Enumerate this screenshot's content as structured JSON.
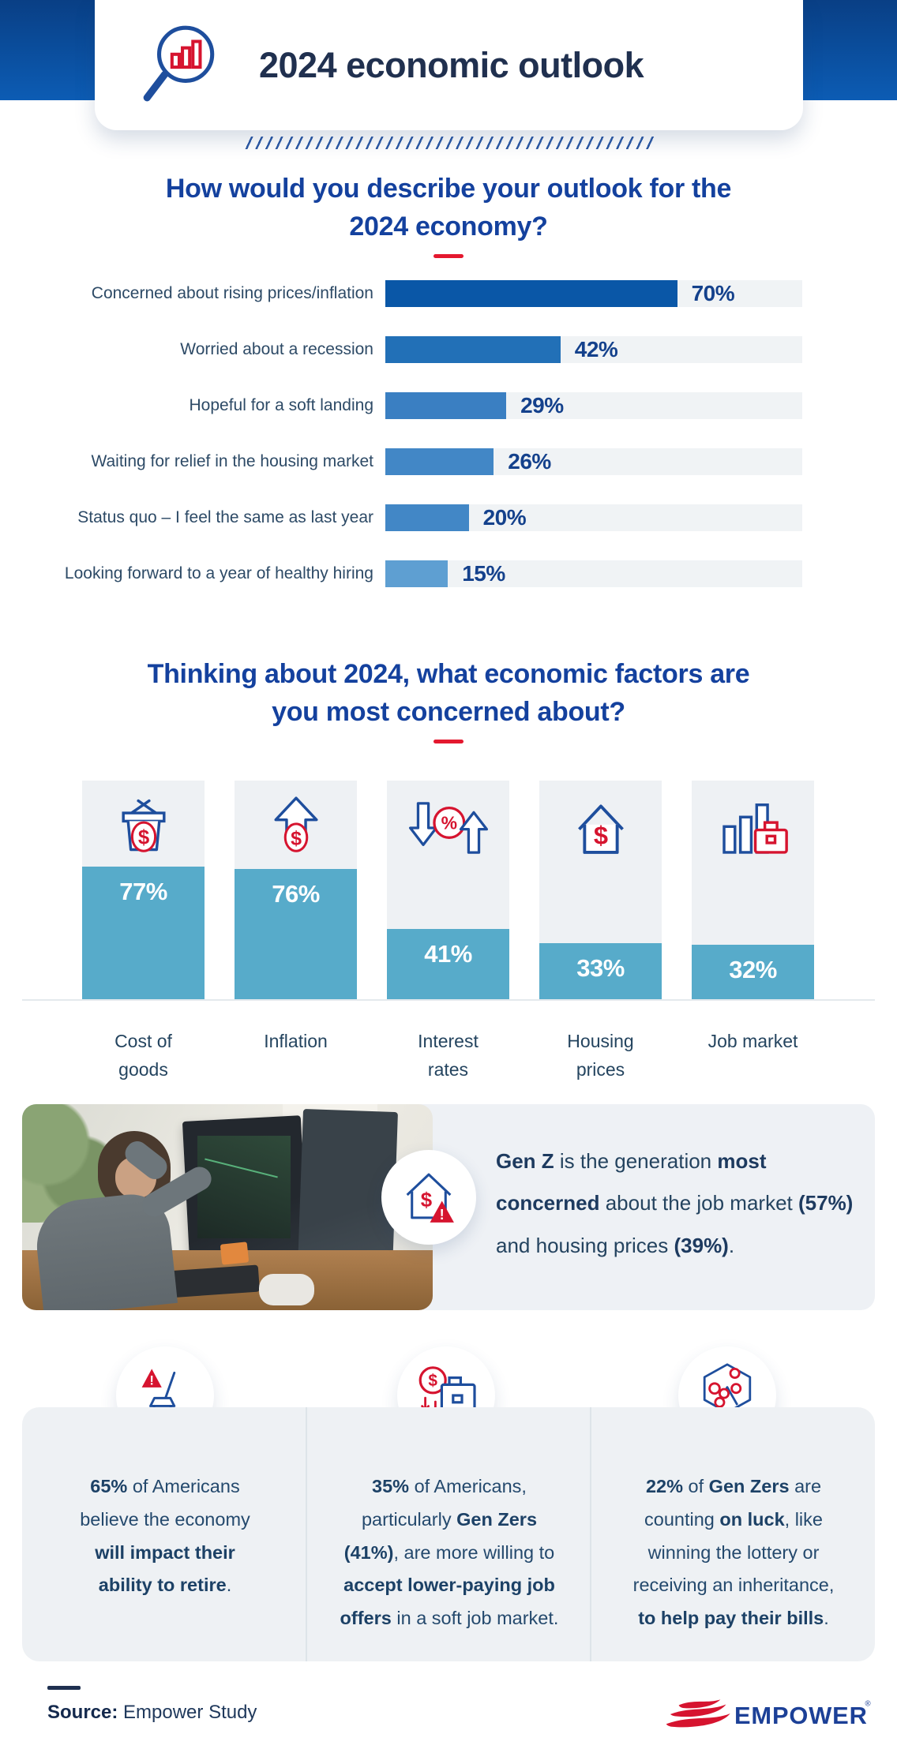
{
  "header": {
    "title": "2024 economic outlook",
    "icon": "magnifier-bar-chart-icon"
  },
  "accent": {
    "heading_blue": "#14419e",
    "red": "#e4182f",
    "navy_icon": "#1e4e9d",
    "teal": "#57abca"
  },
  "chart_data": [
    {
      "type": "bar",
      "orientation": "horizontal",
      "title": "How would you describe your outlook for the\n2024 economy?",
      "unit": "%",
      "xlim": [
        0,
        100
      ],
      "track_color": "#f0f3f5",
      "rows": [
        {
          "label": "Concerned about rising prices/inflation",
          "value": 70,
          "value_label": "70%",
          "color": "#0a57a7"
        },
        {
          "label": "Worried about a recession",
          "value": 42,
          "value_label": "42%",
          "color": "#2270b7"
        },
        {
          "label": "Hopeful for a soft landing",
          "value": 29,
          "value_label": "29%",
          "color": "#3a7fc2"
        },
        {
          "label": "Waiting for relief in the housing market",
          "value": 26,
          "value_label": "26%",
          "color": "#4287c6"
        },
        {
          "label": "Status quo – I feel the same as last year",
          "value": 20,
          "value_label": "20%",
          "color": "#4287c6"
        },
        {
          "label": "Looking forward to a year of healthy hiring",
          "value": 15,
          "value_label": "15%",
          "color": "#5e9fd2",
          "textured": true
        }
      ]
    },
    {
      "type": "bar",
      "orientation": "vertical",
      "title": "Thinking about 2024, what economic factors are\nyou most concerned about?",
      "unit": "%",
      "fill_color": "#57abca",
      "column_bg": "#eef1f4",
      "columns": [
        {
          "label": "Cost of\ngoods",
          "value": 77,
          "value_label": "77%",
          "icon": "basket-dollar-icon"
        },
        {
          "label": "Inflation",
          "value": 76,
          "value_label": "76%",
          "icon": "arrow-up-dollar-icon"
        },
        {
          "label": "Interest\nrates",
          "value": 41,
          "value_label": "41%",
          "icon": "percent-arrows-icon"
        },
        {
          "label": "Housing\nprices",
          "value": 33,
          "value_label": "33%",
          "icon": "house-dollar-icon"
        },
        {
          "label": "Job market",
          "value": 32,
          "value_label": "32%",
          "icon": "chart-briefcase-icon"
        }
      ]
    }
  ],
  "genz": {
    "icon": "house-dollar-alert-icon",
    "segments": [
      {
        "t": "Gen Z",
        "b": true
      },
      {
        "t": " is the generation ",
        "b": false
      },
      {
        "t": "most\nconcerned",
        "b": true
      },
      {
        "t": " about the job market ",
        "b": false
      },
      {
        "t": "(57%)",
        "b": true
      },
      {
        "t": "\nand housing prices ",
        "b": false
      },
      {
        "t": "(39%)",
        "b": true
      },
      {
        "t": ".",
        "b": false
      }
    ]
  },
  "stats": [
    {
      "icon": "rocking-chair-alert-icon",
      "segments": [
        {
          "t": "65%",
          "b": true
        },
        {
          "t": " of Americans\nbelieve the economy\n",
          "b": false
        },
        {
          "t": "will impact their\nability to retire",
          "b": true
        },
        {
          "t": ".",
          "b": false
        }
      ]
    },
    {
      "icon": "dollar-down-briefcase-icon",
      "segments": [
        {
          "t": "35%",
          "b": true
        },
        {
          "t": " of Americans,\nparticularly ",
          "b": false
        },
        {
          "t": "Gen Zers\n(41%)",
          "b": true
        },
        {
          "t": ", are more willing to\n",
          "b": false
        },
        {
          "t": "accept lower-paying job\noffers",
          "b": true
        },
        {
          "t": " in a soft job market.",
          "b": false
        }
      ]
    },
    {
      "icon": "lottery-balls-icon",
      "segments": [
        {
          "t": "22%",
          "b": true
        },
        {
          "t": " of ",
          "b": false
        },
        {
          "t": "Gen Zers",
          "b": true
        },
        {
          "t": " are\ncounting ",
          "b": false
        },
        {
          "t": "on luck",
          "b": true
        },
        {
          "t": ", like\nwinning the lottery or\nreceiving an inheritance,\n",
          "b": false
        },
        {
          "t": "to help pay their bills",
          "b": true
        },
        {
          "t": ".",
          "b": false
        }
      ]
    }
  ],
  "footer": {
    "source_label": "Source:",
    "source_value": " Empower Study",
    "brand": "EMPOWER"
  }
}
